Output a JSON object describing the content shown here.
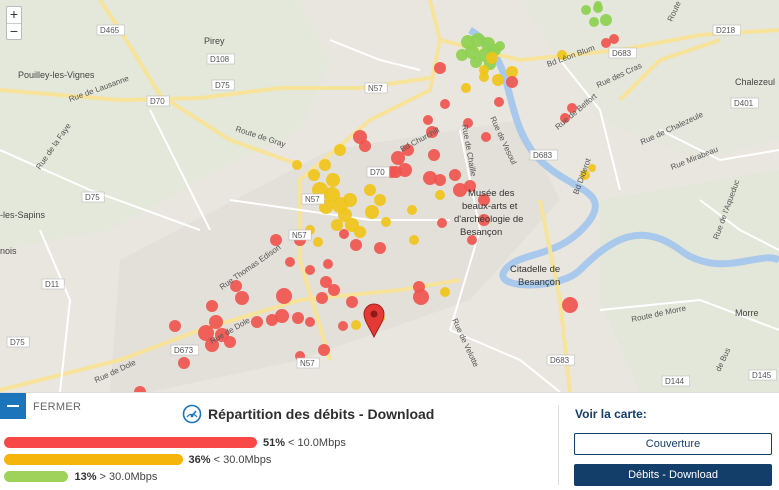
{
  "map": {
    "zoom_in": "+",
    "zoom_out": "−",
    "labels": [
      {
        "id": "d465",
        "text": "D465",
        "kind": "road"
      },
      {
        "id": "pirey",
        "text": "Pirey",
        "kind": "place"
      },
      {
        "id": "d108",
        "text": "D108",
        "kind": "road"
      },
      {
        "id": "pouilley",
        "text": "Pouilley-les-Vignes",
        "kind": "place"
      },
      {
        "id": "lausanne",
        "text": "Rue de Lausanne",
        "kind": "street"
      },
      {
        "id": "d75a",
        "text": "D75",
        "kind": "road"
      },
      {
        "id": "d70a",
        "text": "D70",
        "kind": "road"
      },
      {
        "id": "gray",
        "text": "Route de Gray",
        "kind": "street"
      },
      {
        "id": "faye",
        "text": "Rue de la Faye",
        "kind": "street"
      },
      {
        "id": "sapins",
        "text": "-les-Sapins",
        "kind": "place"
      },
      {
        "id": "d75b",
        "text": "D75",
        "kind": "road"
      },
      {
        "id": "nois",
        "text": "nois",
        "kind": "place"
      },
      {
        "id": "d11",
        "text": "D11",
        "kind": "road"
      },
      {
        "id": "d75c",
        "text": "D75",
        "kind": "road"
      },
      {
        "id": "n57a",
        "text": "N57",
        "kind": "road"
      },
      {
        "id": "burchill",
        "text": "Bd Churchill",
        "kind": "street"
      },
      {
        "id": "d70b",
        "text": "D70",
        "kind": "road"
      },
      {
        "id": "n57b",
        "text": "N57",
        "kind": "road"
      },
      {
        "id": "n57c",
        "text": "N57",
        "kind": "road"
      },
      {
        "id": "edison",
        "text": "Rue Thomas Edison",
        "kind": "street"
      },
      {
        "id": "dole1",
        "text": "Rue de Dole",
        "kind": "street"
      },
      {
        "id": "dole2",
        "text": "Rue de Dole",
        "kind": "street"
      },
      {
        "id": "d673",
        "text": "D673",
        "kind": "road"
      },
      {
        "id": "n57d",
        "text": "N57",
        "kind": "road"
      },
      {
        "id": "chalezeule",
        "text": "Rue de Chalezeule",
        "kind": "street"
      },
      {
        "id": "vesoul",
        "text": "Rue de Vesoul",
        "kind": "street"
      },
      {
        "id": "chaille",
        "text": "Rue de Chaille",
        "kind": "street"
      },
      {
        "id": "blum",
        "text": "Bd Léon Blum",
        "kind": "street"
      },
      {
        "id": "belfort",
        "text": "Rue de Belfort",
        "kind": "street"
      },
      {
        "id": "d683a",
        "text": "D683",
        "kind": "road"
      },
      {
        "id": "d683b",
        "text": "D683",
        "kind": "road"
      },
      {
        "id": "d683c",
        "text": "D683",
        "kind": "road"
      },
      {
        "id": "d218",
        "text": "D218",
        "kind": "road"
      },
      {
        "id": "d401",
        "text": "D401",
        "kind": "road"
      },
      {
        "id": "cras",
        "text": "Rue des Cras",
        "kind": "street"
      },
      {
        "id": "chalezeul2",
        "text": "Chalezeul",
        "kind": "place"
      },
      {
        "id": "chalezeule2",
        "text": "Rue de Chalezeule",
        "kind": "street"
      },
      {
        "id": "mirabeau",
        "text": "Rue Mirabeau",
        "kind": "street"
      },
      {
        "id": "diderot",
        "text": "Bd Diderot",
        "kind": "street"
      },
      {
        "id": "musee1",
        "text": "Musée des",
        "kind": "poi"
      },
      {
        "id": "musee2",
        "text": "beaux-arts et",
        "kind": "poi"
      },
      {
        "id": "musee3",
        "text": "d'archéologie de",
        "kind": "poi"
      },
      {
        "id": "musee4",
        "text": "Besançon",
        "kind": "poi"
      },
      {
        "id": "citadelle1",
        "text": "Citadelle de",
        "kind": "poi"
      },
      {
        "id": "citadelle2",
        "text": "Besançon",
        "kind": "poi"
      },
      {
        "id": "velotte",
        "text": "Rue de Velotte",
        "kind": "street"
      },
      {
        "id": "morre",
        "text": "Route de Morre",
        "kind": "street"
      },
      {
        "id": "morre2",
        "text": "Morre",
        "kind": "place"
      },
      {
        "id": "aqueduc",
        "text": "Rue de l'Aqueduc",
        "kind": "street"
      },
      {
        "id": "d144",
        "text": "D144",
        "kind": "road"
      },
      {
        "id": "d145",
        "text": "D145",
        "kind": "road"
      },
      {
        "id": "bus",
        "text": "de Bus",
        "kind": "street"
      },
      {
        "id": "routel",
        "text": "Route",
        "kind": "street"
      },
      {
        "id": "d70c",
        "text": "D70",
        "kind": "road"
      },
      {
        "id": "d75d",
        "text": "D75",
        "kind": "road"
      }
    ],
    "colors": {
      "low": "#f0554f",
      "mid": "#f0c419",
      "high": "#8dd14f",
      "marker": "#e53935"
    }
  },
  "panel": {
    "close_label": "FERMER",
    "title": "Répartition des débits - Download",
    "bars": [
      {
        "id": "low",
        "percent_text": "51%",
        "range_text": " < 10.0Mbps",
        "value": 51,
        "color": "#f94848"
      },
      {
        "id": "mid",
        "percent_text": "36%",
        "range_text": " < 30.0Mbps",
        "value": 36,
        "color": "#f5b50a"
      },
      {
        "id": "high",
        "percent_text": "13%",
        "range_text": " > 30.0Mbps",
        "value": 13,
        "color": "#9fd25a"
      }
    ],
    "voir_label": "Voir la carte:",
    "btn_couverture": "Couverture",
    "btn_debits": "Débits - Download"
  }
}
